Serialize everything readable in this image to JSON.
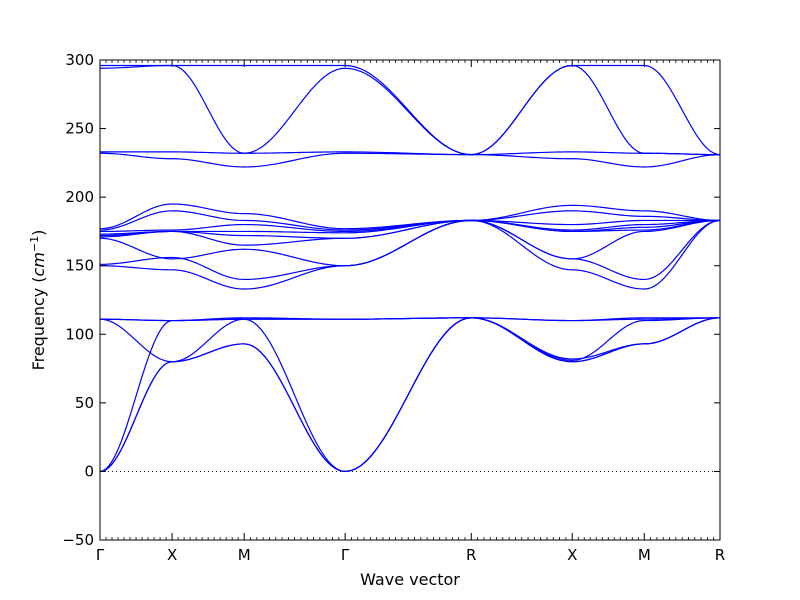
{
  "chart_data": {
    "type": "line",
    "title": "",
    "xlabel": "Wave vector",
    "ylabel": "Frequency",
    "ylabel_unit": "cm",
    "ylabel_unit_exponent": "−1",
    "ylim": [
      -50,
      300
    ],
    "yticks": [
      -50,
      0,
      50,
      100,
      150,
      200,
      250,
      300
    ],
    "ytick_labels": [
      "−50",
      "0",
      "50",
      "100",
      "150",
      "200",
      "250",
      "300"
    ],
    "xlim": [
      0,
      8.6
    ],
    "high_symmetry_points": [
      {
        "label": "Γ",
        "x": 0.0
      },
      {
        "label": "X",
        "x": 1.0
      },
      {
        "label": "M",
        "x": 2.0
      },
      {
        "label": "Γ",
        "x": 3.4
      },
      {
        "label": "R",
        "x": 5.15
      },
      {
        "label": "X",
        "x": 6.55
      },
      {
        "label": "M",
        "x": 7.55
      },
      {
        "label": "R",
        "x": 8.6
      }
    ],
    "zero_line": 0,
    "grid": false,
    "line_color": "#0000ff",
    "series": [
      {
        "values": [
          0,
          80,
          93,
          0,
          112,
          80,
          93,
          112
        ]
      },
      {
        "values": [
          0,
          80,
          93,
          0,
          112,
          80,
          93,
          112
        ]
      },
      {
        "values": [
          0,
          110,
          111,
          0,
          112,
          82,
          93,
          112
        ]
      },
      {
        "values": [
          111,
          80,
          111,
          111,
          112,
          81,
          110,
          112
        ]
      },
      {
        "values": [
          111,
          110,
          111,
          111,
          112,
          110,
          111,
          112
        ]
      },
      {
        "values": [
          111,
          110,
          112,
          111,
          112,
          110,
          112,
          112
        ]
      },
      {
        "values": [
          150,
          147,
          133,
          150,
          183,
          147,
          133,
          183
        ]
      },
      {
        "values": [
          151,
          156,
          140,
          150,
          183,
          155,
          140,
          183
        ]
      },
      {
        "values": [
          170,
          155,
          162,
          150,
          183,
          155,
          175,
          183
        ]
      },
      {
        "values": [
          171,
          175,
          165,
          170,
          183,
          175,
          176,
          183
        ]
      },
      {
        "values": [
          172,
          175,
          172,
          170,
          183,
          175,
          178,
          183
        ]
      },
      {
        "values": [
          173,
          175,
          175,
          174,
          183,
          176,
          180,
          183
        ]
      },
      {
        "values": [
          175,
          176,
          180,
          175,
          183,
          180,
          183,
          183
        ]
      },
      {
        "values": [
          176,
          190,
          183,
          176,
          183,
          190,
          186,
          183
        ]
      },
      {
        "values": [
          177,
          195,
          188,
          177,
          183,
          194,
          190,
          183
        ]
      },
      {
        "values": [
          232,
          228,
          222,
          232,
          231,
          228,
          222,
          231
        ]
      },
      {
        "values": [
          233,
          233,
          232,
          233,
          231,
          233,
          232,
          231
        ]
      },
      {
        "values": [
          294,
          296,
          232,
          294,
          231,
          296,
          232,
          231
        ]
      },
      {
        "values": [
          296,
          296,
          296,
          296,
          231,
          296,
          296,
          231
        ]
      }
    ]
  }
}
